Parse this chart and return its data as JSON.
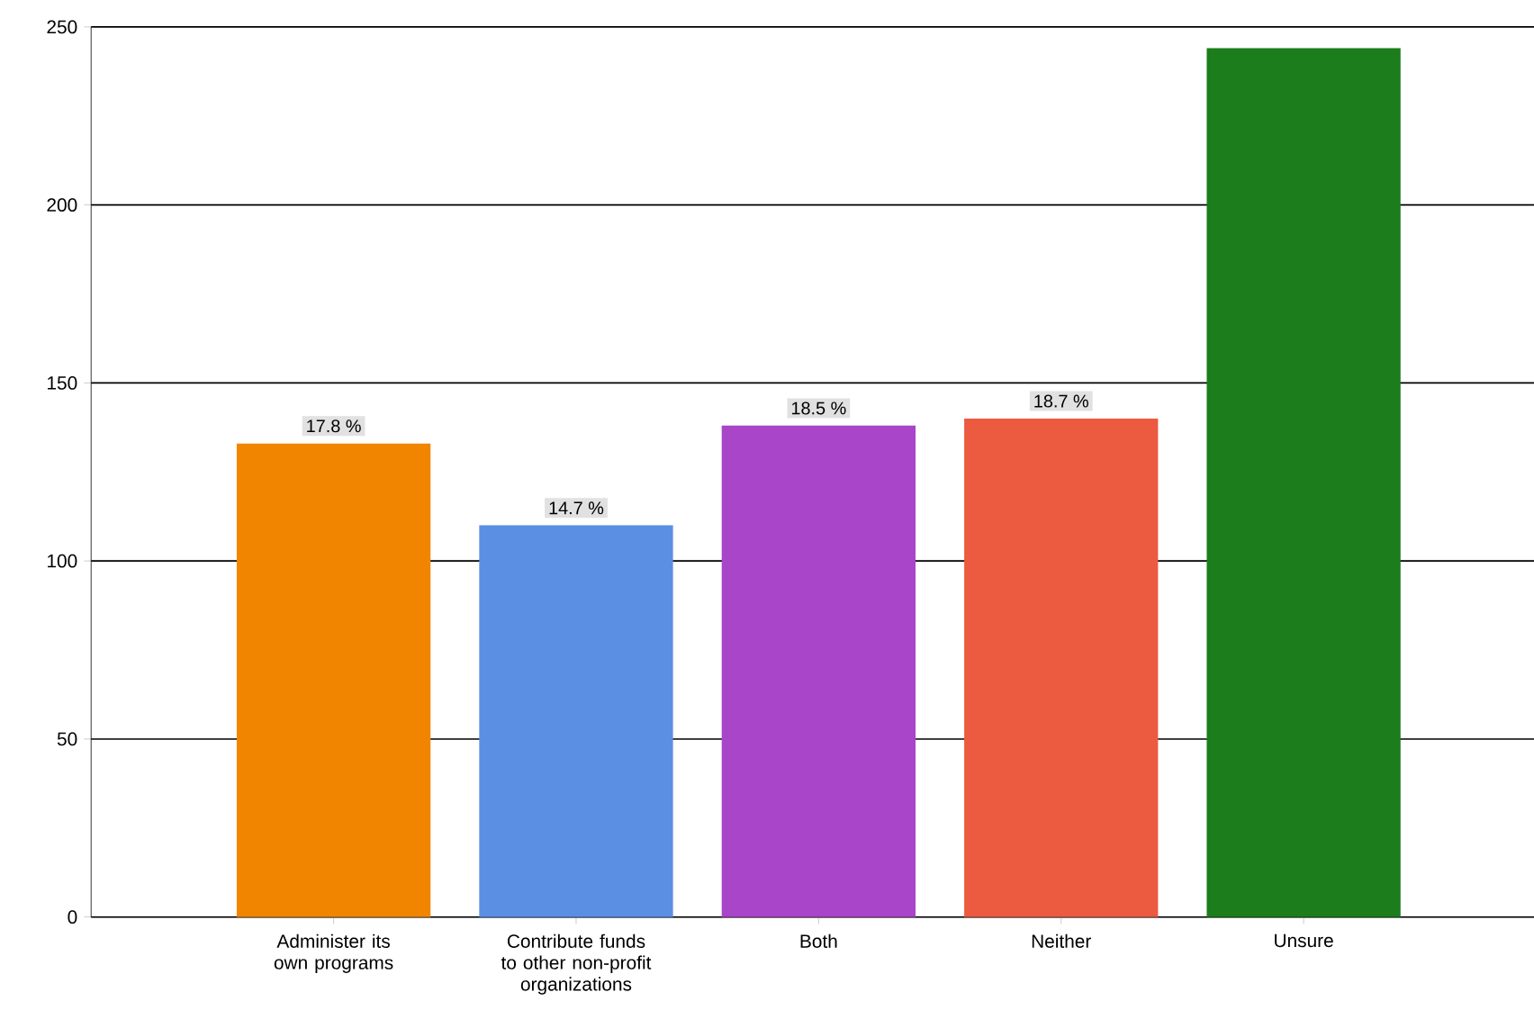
{
  "chart_data": {
    "type": "bar",
    "categories": [
      "Administer its own programs",
      "Contribute funds to other non-profit organizations",
      "Both",
      "Neither",
      "Unsure"
    ],
    "values": [
      133,
      110,
      138,
      140,
      244
    ],
    "colors": [
      "#f28500",
      "#5b8fe3",
      "#a845c8",
      "#ec5a40",
      "#1b7d1b"
    ],
    "annotations": [
      {
        "text": "17.8 %",
        "x": "Administer its own programs",
        "y": 133
      },
      {
        "text": "14.7 %",
        "x": "Contribute funds to other non-profit organizations",
        "y": 110
      },
      {
        "text": "18.5 %",
        "x": "Both",
        "y": 138
      },
      {
        "text": "18.7 %",
        "x": "Neither",
        "y": 140
      }
    ],
    "ylim": [
      0,
      250
    ],
    "yticks": [
      0,
      50,
      100,
      150,
      200,
      250
    ],
    "grid": "y"
  }
}
